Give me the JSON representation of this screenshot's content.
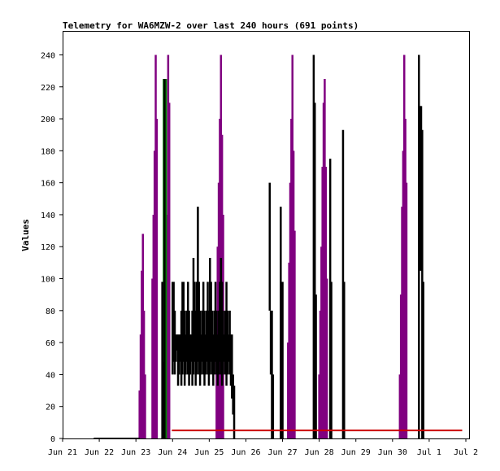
{
  "chart_data": {
    "type": "line",
    "title": "Telemetry for WA6MZW-2 over last 240 hours (691 points)",
    "xlabel": "",
    "ylabel": "Values",
    "ylim": [
      0,
      255
    ],
    "xlim": [
      0,
      11
    ],
    "x_ticks": [
      "Jun 21",
      "Jun 22",
      "Jun 23",
      "Jun 24",
      "Jun 25",
      "Jun 26",
      "Jun 27",
      "Jun 28",
      "Jun 29",
      "Jun 30",
      "Jul 1",
      "Jul 2"
    ],
    "y_ticks": [
      0,
      20,
      40,
      60,
      80,
      100,
      120,
      140,
      160,
      180,
      200,
      220,
      240
    ],
    "grid": false,
    "legend": "none",
    "series": [
      {
        "color": "#800080",
        "spikes": [
          [
            2.1,
            0,
            30
          ],
          [
            2.13,
            0,
            65
          ],
          [
            2.16,
            0,
            105
          ],
          [
            2.19,
            0,
            128
          ],
          [
            2.22,
            0,
            80
          ],
          [
            2.25,
            0,
            40
          ],
          [
            2.45,
            0,
            100
          ],
          [
            2.48,
            0,
            140
          ],
          [
            2.51,
            0,
            180
          ],
          [
            2.54,
            0,
            240
          ],
          [
            2.57,
            0,
            200
          ],
          [
            2.85,
            0,
            140
          ],
          [
            2.88,
            0,
            240
          ],
          [
            2.91,
            0,
            210
          ],
          [
            4.2,
            0,
            80
          ],
          [
            4.23,
            0,
            120
          ],
          [
            4.26,
            0,
            160
          ],
          [
            4.29,
            0,
            200
          ],
          [
            4.32,
            0,
            240
          ],
          [
            4.35,
            0,
            190
          ],
          [
            4.38,
            0,
            140
          ],
          [
            6.15,
            0,
            60
          ],
          [
            6.18,
            0,
            110
          ],
          [
            6.21,
            0,
            160
          ],
          [
            6.24,
            0,
            200
          ],
          [
            6.27,
            0,
            240
          ],
          [
            6.3,
            0,
            180
          ],
          [
            6.33,
            0,
            130
          ],
          [
            7.0,
            0,
            40
          ],
          [
            7.03,
            0,
            80
          ],
          [
            7.06,
            0,
            120
          ],
          [
            7.09,
            0,
            170
          ],
          [
            7.12,
            0,
            210
          ],
          [
            7.15,
            0,
            225
          ],
          [
            7.18,
            0,
            170
          ],
          [
            7.21,
            0,
            100
          ],
          [
            9.2,
            0,
            40
          ],
          [
            9.23,
            0,
            90
          ],
          [
            9.26,
            0,
            145
          ],
          [
            9.29,
            0,
            180
          ],
          [
            9.32,
            0,
            240
          ],
          [
            9.35,
            0,
            200
          ],
          [
            9.38,
            0,
            160
          ]
        ]
      },
      {
        "color": "#008000",
        "spikes": [
          [
            2.76,
            0,
            225
          ],
          [
            2.79,
            0,
            225
          ],
          [
            2.82,
            0,
            225
          ]
        ]
      },
      {
        "color": "#000000",
        "flat": [
          0.85,
          2.1,
          0
        ],
        "spikes": [
          [
            2.72,
            0,
            98
          ],
          [
            2.75,
            0,
            48
          ],
          [
            2.78,
            0,
            225
          ],
          [
            3.0,
            40,
            98
          ],
          [
            3.03,
            48,
            98
          ],
          [
            3.06,
            40,
            80
          ],
          [
            3.09,
            48,
            65
          ],
          [
            3.12,
            55,
            65
          ],
          [
            3.15,
            33,
            65
          ],
          [
            3.18,
            40,
            65
          ],
          [
            3.21,
            48,
            65
          ],
          [
            3.24,
            33,
            80
          ],
          [
            3.27,
            40,
            98
          ],
          [
            3.3,
            48,
            98
          ],
          [
            3.33,
            33,
            80
          ],
          [
            3.36,
            40,
            65
          ],
          [
            3.39,
            48,
            80
          ],
          [
            3.42,
            40,
            98
          ],
          [
            3.45,
            33,
            80
          ],
          [
            3.48,
            40,
            65
          ],
          [
            3.51,
            48,
            65
          ],
          [
            3.54,
            33,
            80
          ],
          [
            3.57,
            40,
            113
          ],
          [
            3.6,
            48,
            98
          ],
          [
            3.63,
            33,
            80
          ],
          [
            3.66,
            40,
            98
          ],
          [
            3.69,
            48,
            145
          ],
          [
            3.72,
            40,
            98
          ],
          [
            3.75,
            33,
            80
          ],
          [
            3.78,
            40,
            65
          ],
          [
            3.81,
            48,
            80
          ],
          [
            3.84,
            40,
            98
          ],
          [
            3.87,
            33,
            80
          ],
          [
            3.9,
            40,
            65
          ],
          [
            3.93,
            48,
            80
          ],
          [
            3.96,
            40,
            98
          ],
          [
            3.99,
            33,
            80
          ],
          [
            4.02,
            40,
            113
          ],
          [
            4.05,
            48,
            98
          ],
          [
            4.08,
            40,
            80
          ],
          [
            4.11,
            33,
            65
          ],
          [
            4.14,
            40,
            80
          ],
          [
            4.17,
            48,
            98
          ],
          [
            4.2,
            40,
            80
          ],
          [
            4.23,
            33,
            65
          ],
          [
            4.26,
            40,
            80
          ],
          [
            4.29,
            48,
            98
          ],
          [
            4.32,
            40,
            113
          ],
          [
            4.35,
            33,
            98
          ],
          [
            4.38,
            40,
            80
          ],
          [
            4.41,
            48,
            65
          ],
          [
            4.44,
            40,
            80
          ],
          [
            4.47,
            33,
            98
          ],
          [
            4.5,
            40,
            80
          ],
          [
            4.53,
            48,
            65
          ],
          [
            4.56,
            40,
            80
          ],
          [
            4.59,
            33,
            65
          ],
          [
            4.62,
            25,
            65
          ],
          [
            4.65,
            15,
            40
          ],
          [
            4.68,
            0,
            33
          ],
          [
            5.65,
            80,
            160
          ],
          [
            5.68,
            40,
            80
          ],
          [
            5.71,
            0,
            80
          ],
          [
            5.74,
            0,
            40
          ],
          [
            5.95,
            0,
            145
          ],
          [
            6.0,
            0,
            98
          ],
          [
            6.85,
            0,
            240
          ],
          [
            6.88,
            0,
            210
          ],
          [
            6.91,
            0,
            90
          ],
          [
            7.3,
            0,
            175
          ],
          [
            7.33,
            0,
            98
          ],
          [
            7.65,
            0,
            193
          ],
          [
            7.68,
            0,
            98
          ],
          [
            9.72,
            0,
            240
          ],
          [
            9.75,
            105,
            208
          ],
          [
            9.78,
            105,
            208
          ],
          [
            9.81,
            0,
            193
          ],
          [
            9.84,
            0,
            98
          ]
        ]
      },
      {
        "color": "#cc0000",
        "flat": [
          2.98,
          10.9,
          5
        ]
      }
    ]
  }
}
